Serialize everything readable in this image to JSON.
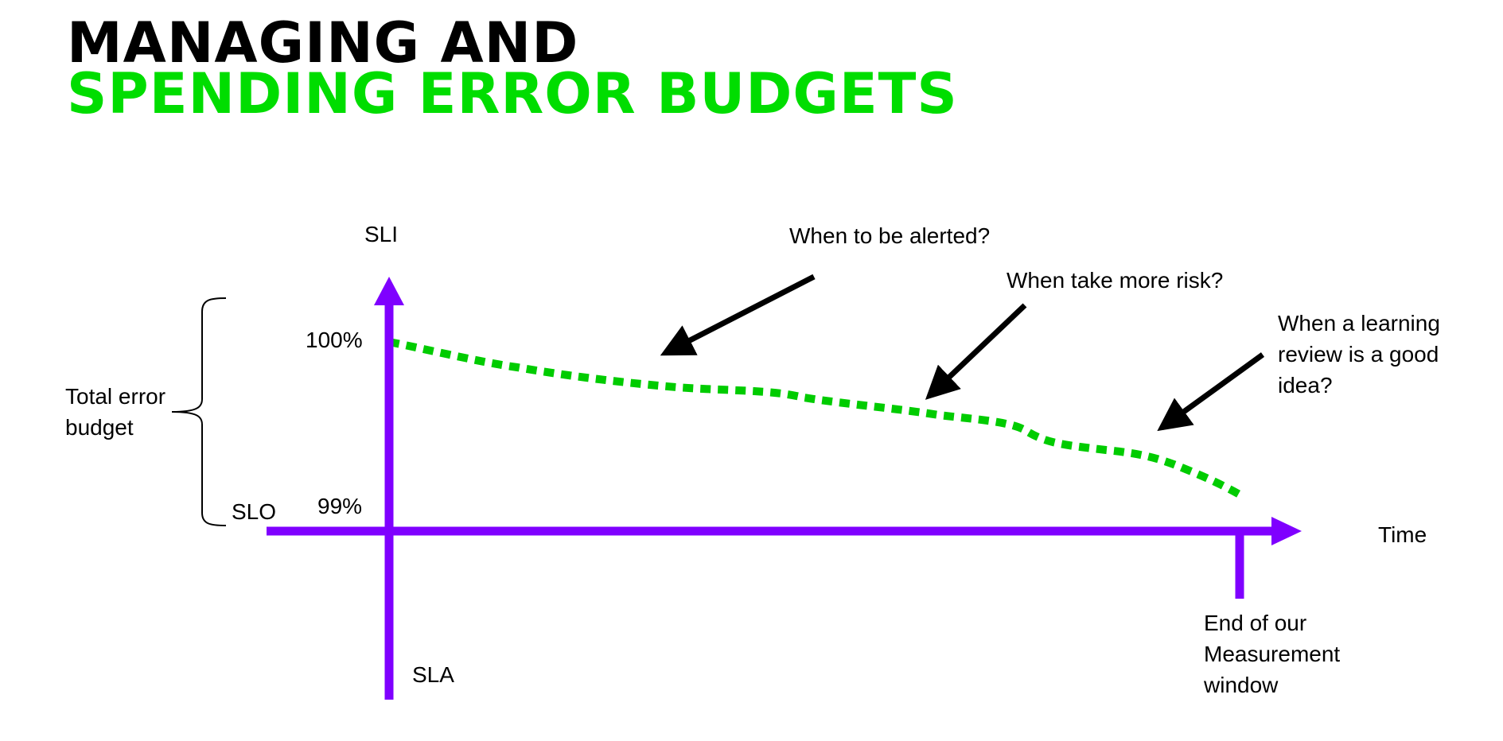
{
  "title": {
    "line1": "MANAGING AND",
    "line2": "SPENDING ERROR BUDGETS"
  },
  "diagram": {
    "y_axis_label": "SLI",
    "x_axis_label": "Time",
    "tick_100": "100%",
    "tick_99": "99%",
    "slo_label": "SLO",
    "sla_label": "SLA",
    "brace_label_line1": "Total error",
    "brace_label_line2": "budget",
    "window_end_line1": "End of our",
    "window_end_line2": "Measurement",
    "window_end_line3": "window",
    "q_alerted": "When to be alerted?",
    "q_risk": "When take more risk?",
    "q_review_line1": "When a learning",
    "q_review_line2": "review is a good",
    "q_review_line3": "idea?"
  },
  "colors": {
    "title_accent": "#00dd00",
    "axis": "#7f00ff",
    "budget_line": "#00cc00",
    "arrow": "#000000"
  }
}
